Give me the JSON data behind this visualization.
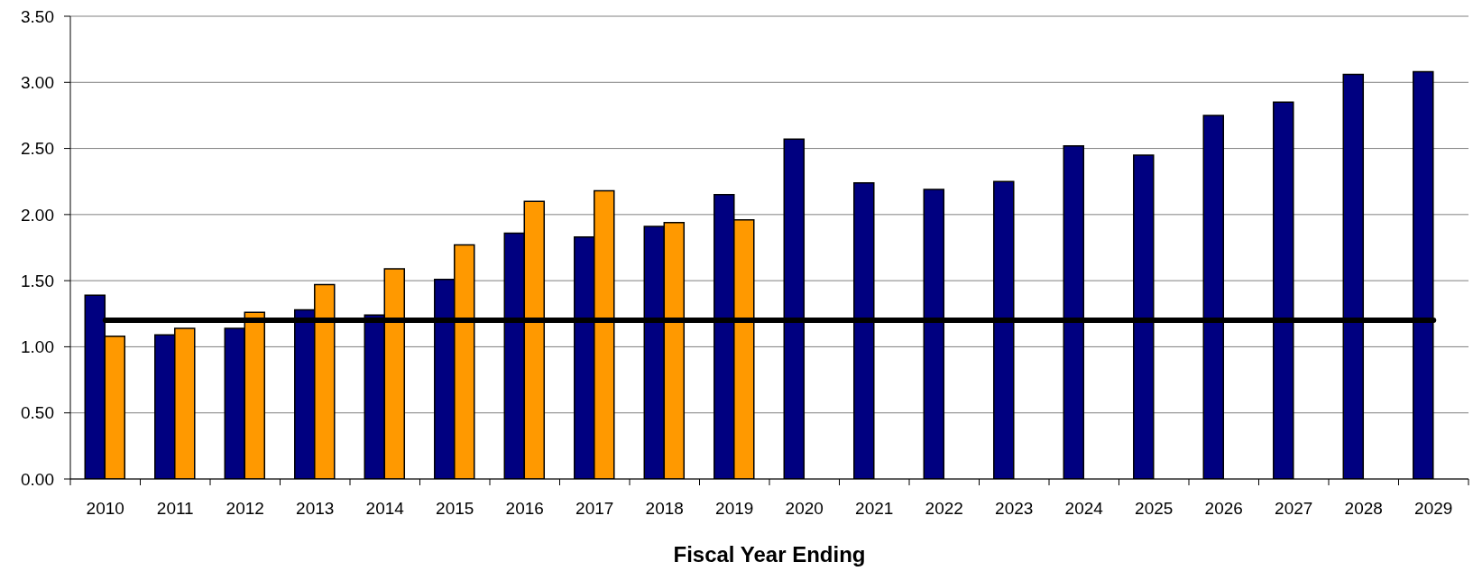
{
  "chart_data": {
    "type": "bar",
    "xlabel": "Fiscal Year Ending",
    "categories": [
      "2010",
      "2011",
      "2012",
      "2013",
      "2014",
      "2015",
      "2016",
      "2017",
      "2018",
      "2019",
      "2020",
      "2021",
      "2022",
      "2023",
      "2024",
      "2025",
      "2026",
      "2027",
      "2028",
      "2029"
    ],
    "series": [
      {
        "color": "#000080",
        "values": [
          1.39,
          1.09,
          1.14,
          1.28,
          1.24,
          1.51,
          1.86,
          1.83,
          1.91,
          2.15,
          2.57,
          2.24,
          2.19,
          2.25,
          2.52,
          2.45,
          2.75,
          2.85,
          3.06,
          3.08
        ]
      },
      {
        "color": "#ff9900",
        "values": [
          1.08,
          1.14,
          1.26,
          1.47,
          1.59,
          1.77,
          2.1,
          2.18,
          1.94,
          1.96,
          null,
          null,
          null,
          null,
          null,
          null,
          null,
          null,
          null,
          null
        ]
      }
    ],
    "ylim": [
      0,
      3.5
    ],
    "yticks": [
      {
        "value": 0,
        "label": "0.00"
      },
      {
        "value": 0.5,
        "label": "0.50"
      },
      {
        "value": 1,
        "label": "1.00"
      },
      {
        "value": 1.5,
        "label": "1.50"
      },
      {
        "value": 2,
        "label": "2.00"
      },
      {
        "value": 2.5,
        "label": "2.50"
      },
      {
        "value": 3,
        "label": "3.00"
      },
      {
        "value": 3.5,
        "label": "3.50"
      }
    ],
    "grid": "y",
    "ref_lines": [
      {
        "axis": "y",
        "value": 1.2,
        "color": "#000000",
        "line_style": "solid"
      }
    ]
  }
}
